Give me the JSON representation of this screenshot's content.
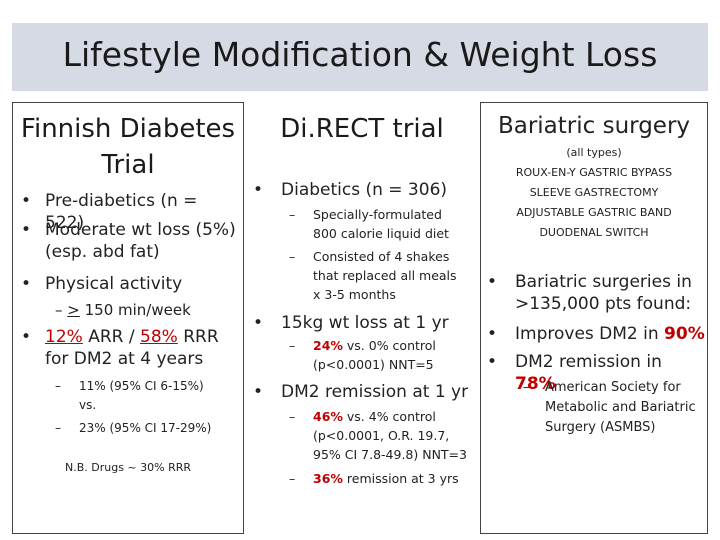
{
  "title": "Lifestyle Modification & Weight Loss",
  "col1": {
    "heading": [
      "Finnish Diabetes",
      "Trial"
    ],
    "b1": "Pre-diabetics (n = 522)",
    "b2a": "Moderate wt loss (5%)",
    "b2b": "(esp. abd fat)",
    "b3": "Physical activity",
    "sub1_prefix": "–",
    "sub1_ge": ">",
    "sub1_rest": " 150 min/week",
    "b4_arr": "12%",
    "b4_mid": " ARR  / ",
    "b4_rrr": "58%",
    "b4_end": " RRR",
    "b4_line2": "for DM2 at 4 years",
    "ci1a": "11% (95% CI 6-15%)",
    "ci1b": "vs.",
    "ci2": "23% (95% CI 17-29%)",
    "note": "N.B. Drugs ~ 30% RRR"
  },
  "col2": {
    "heading": "Di.RECT trial",
    "b1": "Diabetics (n = 306)",
    "s1": [
      "Specially-formulated",
      "800 calorie liquid diet"
    ],
    "s2": [
      "Consisted of 4 shakes",
      "that replaced all meals",
      "x 3-5 months"
    ],
    "b2": "15kg wt loss at 1 yr",
    "s3_red": "24%",
    "s3_rest": " vs. 0% control",
    "s3_line2": "(p<0.0001) NNT=5",
    "b3": "DM2 remission at 1 yr",
    "s4_red": "46%",
    "s4_rest": " vs. 4% control",
    "s4_lines": [
      "(p<0.0001, O.R. 19.7,",
      "95% CI 7.8-49.8) NNT=3"
    ],
    "s5_red": "36%",
    "s5_rest": " remission at 3 yrs"
  },
  "col3": {
    "heading": "Bariatric surgery",
    "types_note": "(all types)",
    "types": [
      "ROUX-EN-Y GASTRIC BYPASS",
      "SLEEVE GASTRECTOMY",
      "ADJUSTABLE GASTRIC BAND",
      "DUODENAL SWITCH"
    ],
    "b1": [
      "Bariatric surgeries in",
      ">135,000 pts found:"
    ],
    "b2_text": "Improves DM2 in ",
    "b2_red": "90%",
    "b3_text": "DM2 remission in ",
    "b3_red": "78%",
    "sub": [
      "American Society for",
      "Metabolic and Bariatric",
      "Surgery (ASMBS)"
    ]
  }
}
